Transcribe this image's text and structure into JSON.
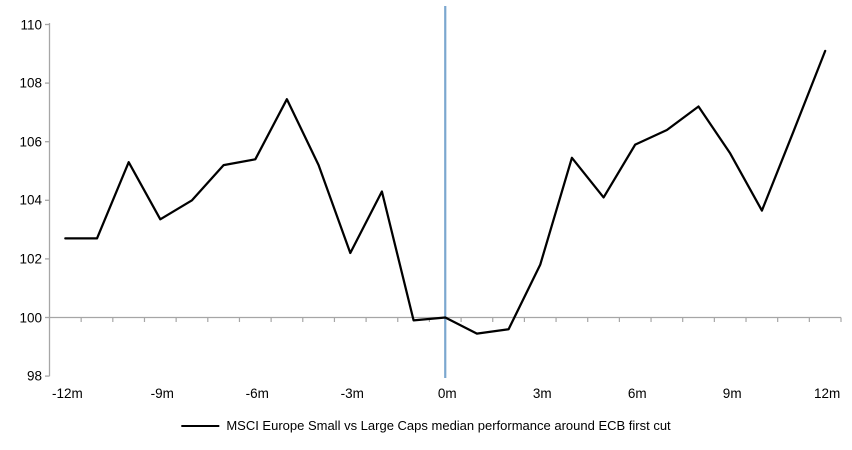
{
  "chart_data": {
    "type": "line",
    "title": "",
    "xlabel": "",
    "ylabel": "",
    "x_tick_labels": [
      "-12m",
      "-9m",
      "-6m",
      "-3m",
      "0m",
      "3m",
      "6m",
      "9m",
      "12m"
    ],
    "x_tick_months": [
      -12,
      -9,
      -6,
      -3,
      0,
      3,
      6,
      9,
      12
    ],
    "y_ticks": [
      110,
      108,
      106,
      104,
      102,
      100,
      98
    ],
    "ylim": [
      98,
      110.5
    ],
    "x": [
      -12,
      -11,
      -10,
      -9,
      -8,
      -7,
      -6,
      -5,
      -4,
      -3,
      -2,
      -1,
      0,
      1,
      2,
      3,
      4,
      5,
      6,
      7,
      8,
      9,
      10,
      11,
      12
    ],
    "series": [
      {
        "name": "MSCI Europe Small vs Large Caps median performance around ECB first cut",
        "color": "#000000",
        "values": [
          102.7,
          102.7,
          105.3,
          103.35,
          104.0,
          105.2,
          105.4,
          107.45,
          105.2,
          102.2,
          104.3,
          99.9,
          100.0,
          99.45,
          99.6,
          101.8,
          105.45,
          104.1,
          105.9,
          106.4,
          107.2,
          105.6,
          103.65,
          106.35,
          109.1
        ]
      }
    ],
    "baseline_value": 100,
    "event_line_month": 0,
    "legend_position": "bottom",
    "grid": "off",
    "colors": {
      "series": "#000000",
      "axis": "#a6a6a6",
      "baseline": "#a6a6a6",
      "event_line": "#7ba7cf",
      "text": "#000000",
      "background": "#ffffff"
    }
  }
}
